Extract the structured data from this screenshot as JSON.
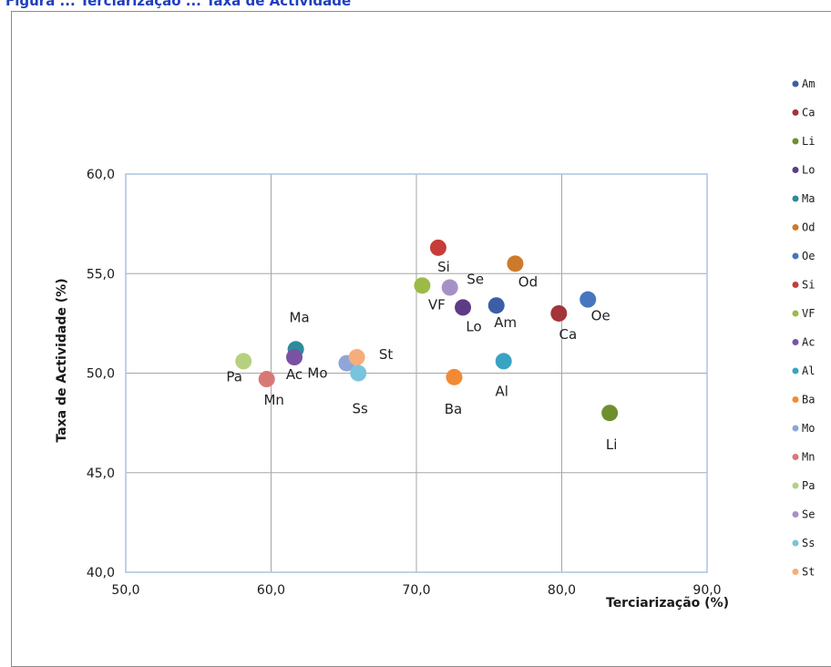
{
  "page": {
    "top_title": "Figura ... Terciarização ... Taxa de Actividade"
  },
  "colors": {
    "grid": "#a6a6a6",
    "plot_border": "#a9c4e4",
    "frame": "#8c8c8c",
    "title": "#1f3fbf"
  },
  "chart_data": {
    "type": "scatter",
    "title": "",
    "xlabel": "Terciarização (%)",
    "ylabel": "Taxa de Actividade (%)",
    "xlim": [
      50,
      90
    ],
    "ylim": [
      40,
      60
    ],
    "xticks": [
      "50,0",
      "60,0",
      "70,0",
      "80,0",
      "90,0"
    ],
    "yticks": [
      "40,0",
      "45,0",
      "50,0",
      "55,0",
      "60,0"
    ],
    "grid": true,
    "legend_position": "right",
    "series": [
      {
        "name": "Am",
        "color": "#3b5ea6",
        "x": 75.5,
        "y": 53.4
      },
      {
        "name": "Ca",
        "color": "#a3343a",
        "x": 79.8,
        "y": 53.0
      },
      {
        "name": "Li",
        "color": "#6f8f2f",
        "x": 83.3,
        "y": 48.0
      },
      {
        "name": "Lo",
        "color": "#5c3c84",
        "x": 73.2,
        "y": 53.3
      },
      {
        "name": "Ma",
        "color": "#2e8b9a",
        "x": 61.7,
        "y": 51.2
      },
      {
        "name": "Od",
        "color": "#cc7a2b",
        "x": 76.8,
        "y": 55.5
      },
      {
        "name": "Oe",
        "color": "#4676c0",
        "x": 81.8,
        "y": 53.7
      },
      {
        "name": "Si",
        "color": "#c63d3a",
        "x": 71.5,
        "y": 56.3
      },
      {
        "name": "VF",
        "color": "#9bbb46",
        "x": 70.4,
        "y": 54.4
      },
      {
        "name": "Ac",
        "color": "#7a52a3",
        "x": 61.6,
        "y": 50.8
      },
      {
        "name": "Al",
        "color": "#3aa3c2",
        "x": 76.0,
        "y": 50.6
      },
      {
        "name": "Ba",
        "color": "#f28a35",
        "x": 72.6,
        "y": 49.8
      },
      {
        "name": "Mo",
        "color": "#8fa6d6",
        "x": 65.2,
        "y": 50.5
      },
      {
        "name": "Mn",
        "color": "#d87876",
        "x": 59.7,
        "y": 49.7
      },
      {
        "name": "Pa",
        "color": "#b5d180",
        "x": 58.1,
        "y": 50.6
      },
      {
        "name": "Se",
        "color": "#a691c6",
        "x": 72.3,
        "y": 54.3
      },
      {
        "name": "Ss",
        "color": "#7ac3dc",
        "x": 66.0,
        "y": 50.0
      },
      {
        "name": "St",
        "color": "#f7ad7a",
        "x": 65.9,
        "y": 50.8
      }
    ]
  }
}
